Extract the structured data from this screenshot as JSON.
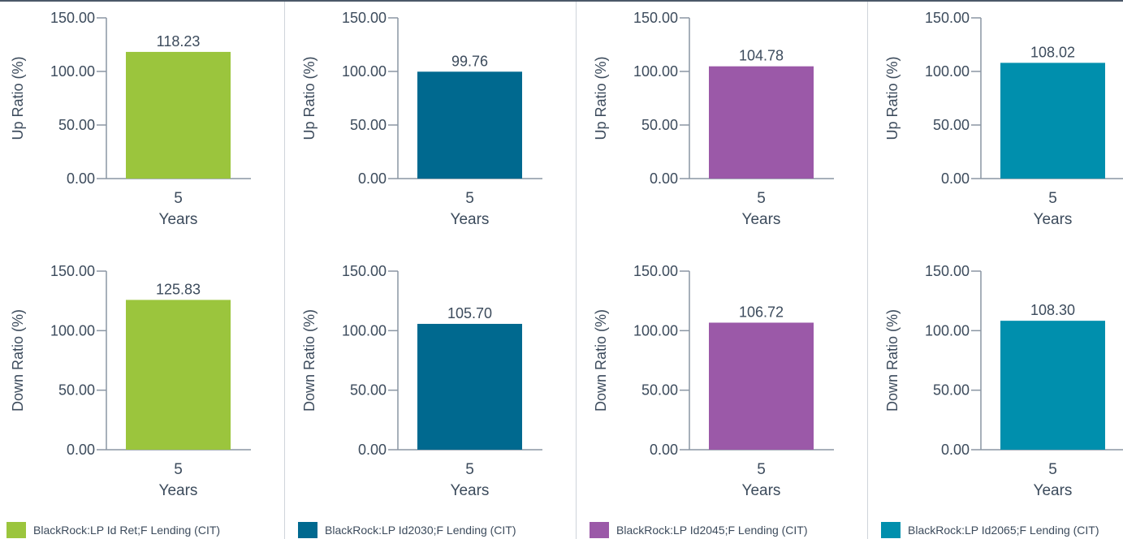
{
  "chart_data": [
    {
      "type": "bar",
      "fund": "BlackRock:LP Id Ret;F Lending (CIT)",
      "color": "#9bc53d",
      "charts": [
        {
          "metric": "up",
          "ylabel": "Up  Ratio (%)",
          "categories": [
            "5"
          ],
          "xlabel": "Years",
          "values": [
            118.23
          ],
          "value_labels": [
            "118.23"
          ],
          "ylim": [
            0,
            150
          ],
          "yticks": [
            "0.00",
            "50.00",
            "100.00",
            "150.00"
          ]
        },
        {
          "metric": "down",
          "ylabel": "Down Ratio (%)",
          "categories": [
            "5"
          ],
          "xlabel": "Years",
          "values": [
            125.83
          ],
          "value_labels": [
            "125.83"
          ],
          "ylim": [
            0,
            150
          ],
          "yticks": [
            "0.00",
            "50.00",
            "100.00",
            "150.00"
          ]
        }
      ]
    },
    {
      "type": "bar",
      "fund": "BlackRock:LP Id2030;F Lending (CIT)",
      "color": "#00698f",
      "charts": [
        {
          "metric": "up",
          "ylabel": "Up  Ratio (%)",
          "categories": [
            "5"
          ],
          "xlabel": "Years",
          "values": [
            99.76
          ],
          "value_labels": [
            "99.76"
          ],
          "ylim": [
            0,
            150
          ],
          "yticks": [
            "0.00",
            "50.00",
            "100.00",
            "150.00"
          ]
        },
        {
          "metric": "down",
          "ylabel": "Down Ratio (%)",
          "categories": [
            "5"
          ],
          "xlabel": "Years",
          "values": [
            105.7
          ],
          "value_labels": [
            "105.70"
          ],
          "ylim": [
            0,
            150
          ],
          "yticks": [
            "0.00",
            "50.00",
            "100.00",
            "150.00"
          ]
        }
      ]
    },
    {
      "type": "bar",
      "fund": "BlackRock:LP Id2045;F Lending (CIT)",
      "color": "#9b59a8",
      "charts": [
        {
          "metric": "up",
          "ylabel": "Up  Ratio (%)",
          "categories": [
            "5"
          ],
          "xlabel": "Years",
          "values": [
            104.78
          ],
          "value_labels": [
            "104.78"
          ],
          "ylim": [
            0,
            150
          ],
          "yticks": [
            "0.00",
            "50.00",
            "100.00",
            "150.00"
          ]
        },
        {
          "metric": "down",
          "ylabel": "Down Ratio (%)",
          "categories": [
            "5"
          ],
          "xlabel": "Years",
          "values": [
            106.72
          ],
          "value_labels": [
            "106.72"
          ],
          "ylim": [
            0,
            150
          ],
          "yticks": [
            "0.00",
            "50.00",
            "100.00",
            "150.00"
          ]
        }
      ]
    },
    {
      "type": "bar",
      "fund": "BlackRock:LP Id2065;F Lending (CIT)",
      "color": "#008fad",
      "charts": [
        {
          "metric": "up",
          "ylabel": "Up  Ratio (%)",
          "categories": [
            "5"
          ],
          "xlabel": "Years",
          "values": [
            108.02
          ],
          "value_labels": [
            "108.02"
          ],
          "ylim": [
            0,
            150
          ],
          "yticks": [
            "0.00",
            "50.00",
            "100.00",
            "150.00"
          ]
        },
        {
          "metric": "down",
          "ylabel": "Down Ratio (%)",
          "categories": [
            "5"
          ],
          "xlabel": "Years",
          "values": [
            108.3
          ],
          "value_labels": [
            "108.30"
          ],
          "ylim": [
            0,
            150
          ],
          "yticks": [
            "0.00",
            "50.00",
            "100.00",
            "150.00"
          ]
        }
      ]
    }
  ],
  "colors": {
    "axis": "#8a96a3",
    "text": "#3c4b5c",
    "divider": "#cfd4da",
    "top_rule": "#4b5868"
  }
}
